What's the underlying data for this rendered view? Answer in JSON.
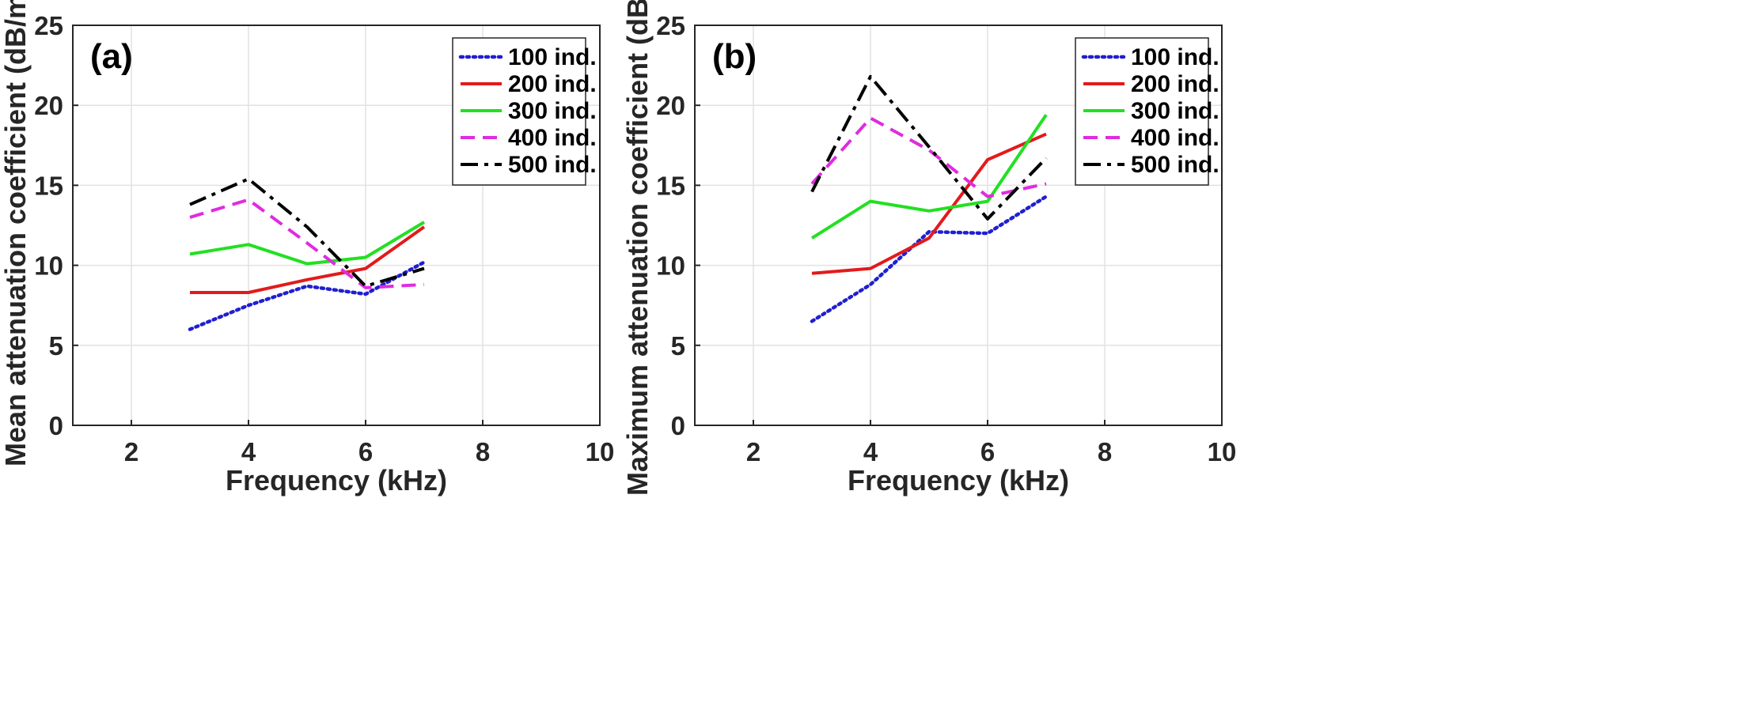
{
  "chart_data": [
    {
      "type": "line",
      "panel_label": "(a)",
      "xlabel": "Frequency (kHz)",
      "ylabel": "Mean attenuation coefficient (dB/m)",
      "xlim": [
        1,
        10
      ],
      "ylim": [
        0,
        25
      ],
      "xticks": [
        2,
        4,
        6,
        8,
        10
      ],
      "yticks": [
        0,
        5,
        10,
        15,
        20,
        25
      ],
      "grid": true,
      "legend_position": "top-right",
      "x": [
        3,
        4,
        5,
        6,
        7
      ],
      "series": [
        {
          "name": "100 ind.",
          "color": "#1f1fd1",
          "style": "dotted",
          "values": [
            6.0,
            7.5,
            8.7,
            8.2,
            10.2
          ]
        },
        {
          "name": "200 ind.",
          "color": "#e31a1c",
          "style": "solid",
          "values": [
            8.3,
            8.3,
            9.1,
            9.8,
            12.4
          ]
        },
        {
          "name": "300 ind.",
          "color": "#22e022",
          "style": "solid",
          "values": [
            10.7,
            11.3,
            10.1,
            10.5,
            12.7
          ]
        },
        {
          "name": "400 ind.",
          "color": "#e02be0",
          "style": "dashed",
          "values": [
            13.0,
            14.1,
            11.4,
            8.6,
            8.8
          ]
        },
        {
          "name": "500 ind.",
          "color": "#000000",
          "style": "dashdot",
          "values": [
            13.8,
            15.4,
            12.4,
            8.7,
            9.8
          ]
        }
      ]
    },
    {
      "type": "line",
      "panel_label": "(b)",
      "xlabel": "Frequency (kHz)",
      "ylabel": "Maximum attenuation coefficient (dB/m)",
      "xlim": [
        1,
        10
      ],
      "ylim": [
        0,
        25
      ],
      "xticks": [
        2,
        4,
        6,
        8,
        10
      ],
      "yticks": [
        0,
        5,
        10,
        15,
        20,
        25
      ],
      "grid": true,
      "legend_position": "top-right",
      "x": [
        3,
        4,
        5,
        6,
        7
      ],
      "series": [
        {
          "name": "100 ind.",
          "color": "#1f1fd1",
          "style": "dotted",
          "values": [
            6.5,
            8.8,
            12.1,
            12.0,
            14.3
          ]
        },
        {
          "name": "200 ind.",
          "color": "#e31a1c",
          "style": "solid",
          "values": [
            9.5,
            9.8,
            11.7,
            16.6,
            18.2
          ]
        },
        {
          "name": "300 ind.",
          "color": "#22e022",
          "style": "solid",
          "values": [
            11.7,
            14.0,
            13.4,
            14.0,
            19.4
          ]
        },
        {
          "name": "400 ind.",
          "color": "#e02be0",
          "style": "dashed",
          "values": [
            15.1,
            19.2,
            17.2,
            14.3,
            15.1
          ]
        },
        {
          "name": "500 ind.",
          "color": "#000000",
          "style": "dashdot",
          "values": [
            14.6,
            21.8,
            17.4,
            12.9,
            16.7
          ]
        }
      ]
    }
  ]
}
